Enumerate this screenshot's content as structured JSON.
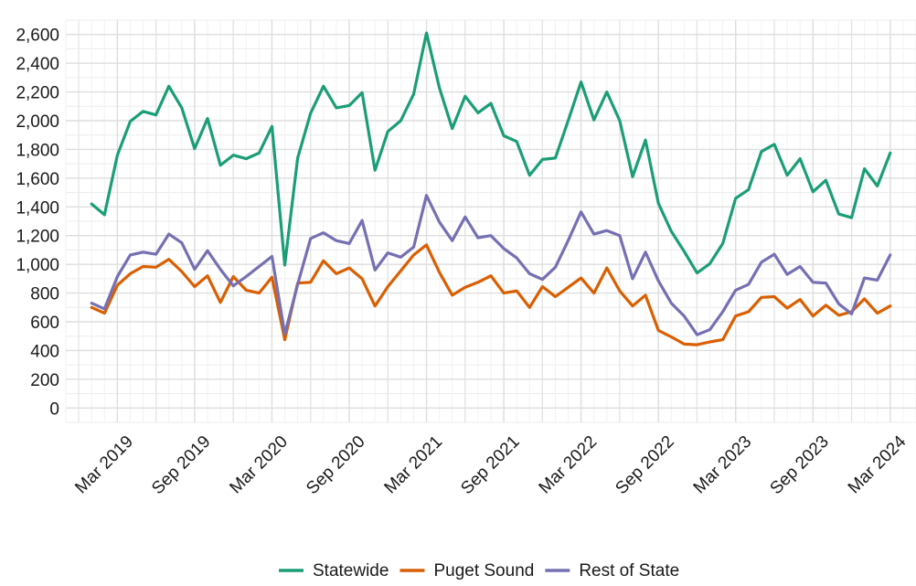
{
  "chart_data": {
    "type": "line",
    "title": "",
    "xlabel": "",
    "ylabel": "",
    "ylim": [
      -100,
      2700
    ],
    "xlim": [
      "2018-11-01",
      "2024-05-01"
    ],
    "y_ticks": [
      0,
      200,
      400,
      600,
      800,
      1000,
      1200,
      1400,
      1600,
      1800,
      2000,
      2200,
      2400,
      2600
    ],
    "y_tick_labels": [
      "0",
      "200",
      "400",
      "600",
      "800",
      "1,000",
      "1,200",
      "1,400",
      "1,600",
      "1,800",
      "2,000",
      "2,200",
      "2,400",
      "2,600"
    ],
    "x_ticks": [
      "2019-03-01",
      "2019-09-01",
      "2020-03-01",
      "2020-09-01",
      "2021-03-01",
      "2021-09-01",
      "2022-03-01",
      "2022-09-01",
      "2023-03-01",
      "2023-09-01",
      "2024-03-01"
    ],
    "x_tick_labels": [
      "Mar 2019",
      "Sep 2019",
      "Mar 2020",
      "Sep 2020",
      "Mar 2021",
      "Sep 2021",
      "Mar 2022",
      "Sep 2022",
      "Mar 2023",
      "Sep 2023",
      "Mar 2024"
    ],
    "grid": true,
    "legend_position": "bottom",
    "x": [
      "2019-01",
      "2019-02",
      "2019-03",
      "2019-04",
      "2019-05",
      "2019-06",
      "2019-07",
      "2019-08",
      "2019-09",
      "2019-10",
      "2019-11",
      "2019-12",
      "2020-01",
      "2020-02",
      "2020-03",
      "2020-04",
      "2020-05",
      "2020-06",
      "2020-07",
      "2020-08",
      "2020-09",
      "2020-10",
      "2020-11",
      "2020-12",
      "2021-01",
      "2021-02",
      "2021-03",
      "2021-04",
      "2021-05",
      "2021-06",
      "2021-07",
      "2021-08",
      "2021-09",
      "2021-10",
      "2021-11",
      "2021-12",
      "2022-01",
      "2022-02",
      "2022-03",
      "2022-04",
      "2022-05",
      "2022-06",
      "2022-07",
      "2022-08",
      "2022-09",
      "2022-10",
      "2022-11",
      "2022-12",
      "2023-01",
      "2023-02",
      "2023-03",
      "2023-04",
      "2023-05",
      "2023-06",
      "2023-07",
      "2023-08",
      "2023-09",
      "2023-10",
      "2023-11",
      "2023-12",
      "2024-01",
      "2024-02",
      "2024-03"
    ],
    "series": [
      {
        "name": "Statewide",
        "color": "#1b9e77",
        "values": [
          1420,
          1345,
          1760,
          1995,
          2065,
          2040,
          2240,
          2090,
          1805,
          2015,
          1690,
          1760,
          1735,
          1775,
          1960,
          995,
          1740,
          2050,
          2240,
          2090,
          2105,
          2195,
          1655,
          1925,
          2000,
          2185,
          2610,
          2230,
          1945,
          2170,
          2055,
          2120,
          1895,
          1855,
          1620,
          1730,
          1740,
          2000,
          2270,
          2005,
          2200,
          2000,
          1610,
          1865,
          1425,
          1230,
          1090,
          940,
          1005,
          1145,
          1460,
          1520,
          1785,
          1835,
          1620,
          1735,
          1505,
          1585,
          1350,
          1325,
          1665,
          1545,
          1775
        ]
      },
      {
        "name": "Puget Sound",
        "color": "#d95f02",
        "values": [
          700,
          660,
          855,
          935,
          985,
          980,
          1035,
          950,
          845,
          920,
          735,
          915,
          820,
          800,
          910,
          475,
          870,
          875,
          1025,
          935,
          975,
          900,
          710,
          845,
          955,
          1065,
          1135,
          945,
          785,
          840,
          875,
          920,
          800,
          815,
          700,
          845,
          775,
          840,
          905,
          800,
          975,
          815,
          710,
          785,
          540,
          495,
          445,
          440,
          460,
          475,
          640,
          670,
          770,
          775,
          695,
          755,
          640,
          715,
          645,
          670,
          760,
          660,
          710
        ]
      },
      {
        "name": "Rest of State",
        "color": "#7570b3",
        "values": [
          730,
          690,
          915,
          1065,
          1085,
          1070,
          1210,
          1150,
          965,
          1095,
          965,
          850,
          915,
          985,
          1055,
          515,
          860,
          1180,
          1220,
          1165,
          1145,
          1305,
          960,
          1080,
          1050,
          1120,
          1480,
          1295,
          1165,
          1330,
          1185,
          1200,
          1110,
          1045,
          935,
          895,
          980,
          1165,
          1365,
          1210,
          1235,
          1200,
          900,
          1085,
          885,
          730,
          640,
          510,
          545,
          670,
          820,
          860,
          1015,
          1070,
          930,
          985,
          875,
          870,
          725,
          655,
          905,
          890,
          1065
        ]
      }
    ]
  }
}
